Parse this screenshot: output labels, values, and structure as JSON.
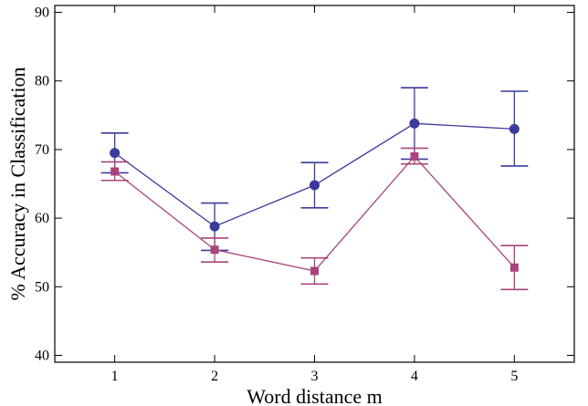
{
  "chart_data": {
    "type": "line",
    "title": "",
    "xlabel": "Word distance m",
    "ylabel": "% Accuracy in Classification",
    "x": [
      1,
      2,
      3,
      4,
      5
    ],
    "x_ticks": [
      "1",
      "2",
      "3",
      "4",
      "5"
    ],
    "xlim": [
      0.4,
      5.6
    ],
    "ylim": [
      39,
      91
    ],
    "y_ticks": [
      "40",
      "50",
      "60",
      "70",
      "80",
      "90"
    ],
    "y_tick_values": [
      40,
      50,
      60,
      70,
      80,
      90
    ],
    "grid": false,
    "series": [
      {
        "color": "#3b3b9e",
        "marker": "circle",
        "values": [
          69.5,
          58.8,
          64.8,
          73.8,
          73.0
        ],
        "err_low": [
          66.6,
          55.3,
          61.5,
          68.6,
          67.6
        ],
        "err_high": [
          72.4,
          62.2,
          68.1,
          79.0,
          78.5
        ]
      },
      {
        "color": "#a8447a",
        "marker": "square",
        "values": [
          66.8,
          55.4,
          52.3,
          69.0,
          52.8
        ],
        "err_low": [
          65.5,
          53.6,
          50.4,
          67.9,
          49.6
        ],
        "err_high": [
          68.2,
          57.1,
          54.2,
          70.2,
          56.0
        ]
      }
    ]
  }
}
